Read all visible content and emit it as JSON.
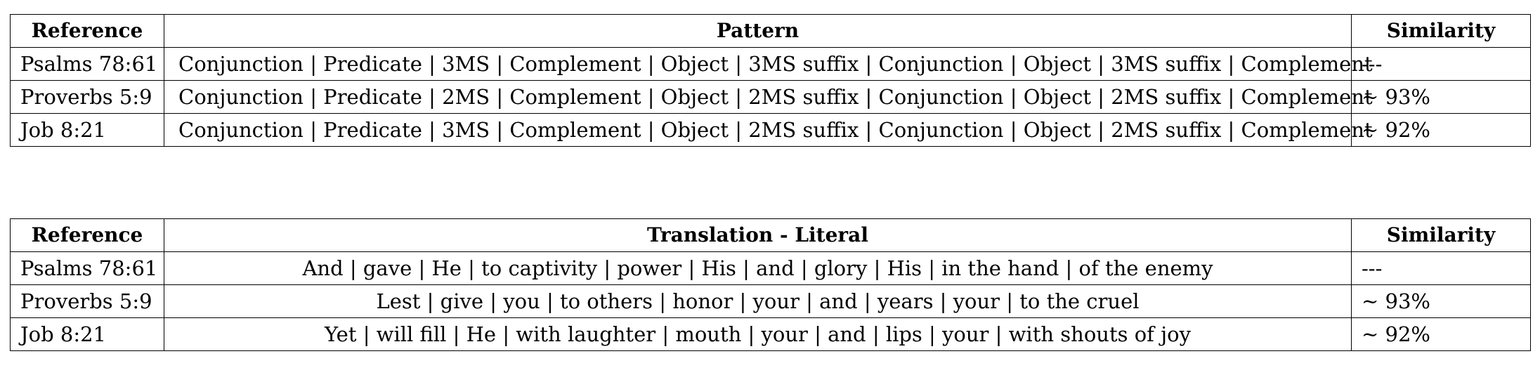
{
  "pattern_table": {
    "headers": [
      "Reference",
      "Pattern",
      "Similarity"
    ],
    "rows": [
      {
        "reference": "Psalms 78:61",
        "text": "Conjunction | Predicate | 3MS | Complement | Object | 3MS suffix | Conjunction | Object | 3MS suffix | Complement",
        "similarity": "---"
      },
      {
        "reference": "Proverbs 5:9",
        "text": "Conjunction | Predicate | 2MS | Complement | Object | 2MS suffix | Conjunction | Object | 2MS suffix | Complement",
        "similarity": "~ 93%"
      },
      {
        "reference": "Job 8:21",
        "text": "Conjunction | Predicate | 3MS | Complement | Object | 2MS suffix | Conjunction | Object | 2MS suffix | Complement",
        "similarity": "~ 92%"
      }
    ]
  },
  "translation_table": {
    "headers": [
      "Reference",
      "Translation - Literal",
      "Similarity"
    ],
    "rows": [
      {
        "reference": "Psalms 78:61",
        "text": "And | gave | He | to captivity | power | His | and | glory | His | in the hand | of the enemy",
        "similarity": "---"
      },
      {
        "reference": "Proverbs 5:9",
        "text": "Lest | give | you | to others | honor | your | and | years | your | to the cruel",
        "similarity": "~ 93%"
      },
      {
        "reference": "Job 8:21",
        "text": "Yet | will fill | He | with laughter | mouth | your | and | lips | your | with shouts of joy",
        "similarity": "~ 92%"
      }
    ]
  }
}
